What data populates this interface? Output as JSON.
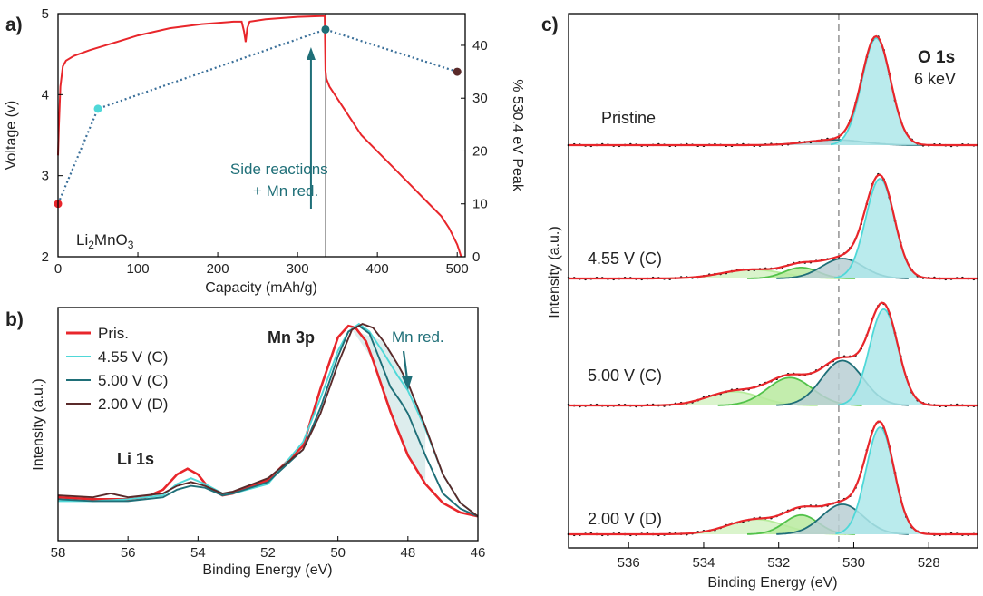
{
  "colors": {
    "red": "#e8262b",
    "cyan": "#4fd8d8",
    "teal": "#1f6f78",
    "brown": "#5a2a2a",
    "dotted": "#3a6f99",
    "green": "#52c24a",
    "lightgreen": "#b5ec9a",
    "cyanfill": "#aee8ea",
    "grayfill": "#b8cfd3",
    "dash": "#999999"
  },
  "chart_data": [
    {
      "panel": "a)",
      "type": "line",
      "xlabel": "Capacity (mAh/g)",
      "ylabel": "Voltage (v)",
      "y2label": "% 530.4 eV Peak",
      "xlim": [
        0,
        510
      ],
      "ylim": [
        2,
        5
      ],
      "y2lim": [
        0,
        46
      ],
      "xticks": [
        "0",
        "100",
        "200",
        "300",
        "400",
        "500"
      ],
      "yticks": [
        "2",
        "3",
        "4",
        "5"
      ],
      "y2ticks": [
        "0",
        "10",
        "20",
        "30",
        "40"
      ],
      "annotation": "Side reactions\n+ Mn red.",
      "sample_label": "Li2MnO3",
      "series": [
        {
          "role": "voltage",
          "x": [
            0,
            1,
            3,
            6,
            10,
            20,
            40,
            70,
            100,
            140,
            180,
            220,
            230,
            233,
            235,
            237,
            240,
            260,
            300,
            330,
            334,
            335,
            336,
            340,
            360,
            380,
            400,
            420,
            440,
            460,
            480,
            490,
            500,
            505
          ],
          "y": [
            3.25,
            3.6,
            4.1,
            4.35,
            4.42,
            4.48,
            4.55,
            4.64,
            4.73,
            4.82,
            4.87,
            4.9,
            4.9,
            4.78,
            4.65,
            4.82,
            4.9,
            4.93,
            4.96,
            4.97,
            4.97,
            4.3,
            4.2,
            4.1,
            3.8,
            3.5,
            3.3,
            3.1,
            2.9,
            2.7,
            2.5,
            2.35,
            2.15,
            2.0
          ]
        },
        {
          "role": "530.4 eV peak %",
          "x": [
            0,
            50,
            335,
            500
          ],
          "y": [
            10,
            28,
            43,
            35
          ],
          "point_colors": [
            "#e8262b",
            "#4fd8d8",
            "#1f6f78",
            "#5a2a2a"
          ]
        }
      ]
    },
    {
      "panel": "b)",
      "type": "line",
      "xlabel": "Binding Energy (eV)",
      "ylabel": "Intensity (a.u.)",
      "xlim": [
        58,
        46
      ],
      "xticks": [
        "58",
        "56",
        "54",
        "52",
        "50",
        "48",
        "46"
      ],
      "peak_labels": [
        "Mn 3p",
        "Li 1s"
      ],
      "annotation": "Mn red.",
      "legend": [
        "Pris.",
        "4.55 V (C)",
        "5.00 V (C)",
        "2.00 V (D)"
      ],
      "series": [
        {
          "name": "Pris.",
          "x": [
            58,
            57,
            56,
            55.5,
            55,
            54.6,
            54.3,
            54.0,
            53.7,
            53.3,
            53,
            52,
            51,
            50.5,
            50,
            49.7,
            49.5,
            49.2,
            49,
            48.5,
            48,
            47.5,
            47,
            46.5,
            46
          ],
          "y": [
            0.08,
            0.07,
            0.07,
            0.08,
            0.12,
            0.2,
            0.23,
            0.2,
            0.13,
            0.09,
            0.1,
            0.17,
            0.35,
            0.65,
            0.92,
            0.98,
            0.97,
            0.9,
            0.8,
            0.53,
            0.3,
            0.15,
            0.05,
            0.0,
            -0.02
          ]
        },
        {
          "name": "4.55 V (C)",
          "x": [
            58,
            57,
            56,
            55.5,
            55,
            54.6,
            54.2,
            53.8,
            53.3,
            53,
            52,
            51,
            50.5,
            50,
            49.7,
            49.4,
            49.1,
            48.7,
            48.3,
            48,
            47.5,
            47,
            46.5,
            46
          ],
          "y": [
            0.06,
            0.06,
            0.07,
            0.08,
            0.09,
            0.15,
            0.18,
            0.15,
            0.1,
            0.1,
            0.15,
            0.37,
            0.6,
            0.85,
            0.95,
            0.99,
            0.95,
            0.84,
            0.72,
            0.64,
            0.44,
            0.2,
            0.05,
            -0.02
          ]
        },
        {
          "name": "5.00 V (C)",
          "x": [
            58,
            57,
            56,
            55.5,
            55,
            54.6,
            54.2,
            53.8,
            53.3,
            53,
            52,
            51,
            50.5,
            50,
            49.7,
            49.4,
            49.1,
            48.8,
            48.5,
            48.2,
            48,
            47.5,
            47,
            46.5,
            46
          ],
          "y": [
            0.07,
            0.06,
            0.06,
            0.07,
            0.08,
            0.12,
            0.14,
            0.13,
            0.09,
            0.1,
            0.16,
            0.33,
            0.55,
            0.82,
            0.95,
            0.98,
            0.94,
            0.8,
            0.66,
            0.58,
            0.52,
            0.3,
            0.1,
            0.02,
            -0.02
          ]
        },
        {
          "name": "2.00 V (D)",
          "x": [
            58,
            57,
            56.5,
            56,
            55.5,
            55,
            54.6,
            54.2,
            53.8,
            53.3,
            53,
            52,
            51,
            50.5,
            50,
            49.6,
            49.3,
            49,
            48.7,
            48.3,
            48,
            47.5,
            47,
            46.5,
            46
          ],
          "y": [
            0.09,
            0.08,
            0.1,
            0.08,
            0.09,
            0.1,
            0.14,
            0.16,
            0.14,
            0.1,
            0.11,
            0.18,
            0.33,
            0.52,
            0.78,
            0.96,
            0.99,
            0.97,
            0.9,
            0.78,
            0.68,
            0.45,
            0.2,
            0.05,
            -0.02
          ]
        }
      ]
    },
    {
      "panel": "c)",
      "type": "line",
      "xlabel": "Binding Energy (eV)",
      "ylabel": "Intensity (a.u.)",
      "xlim": [
        537.6,
        526.7
      ],
      "xticks": [
        "536",
        "534",
        "532",
        "530",
        "528"
      ],
      "reference_line_x": 530.4,
      "title": "O 1s",
      "subtitle": "6 keV",
      "spectra": [
        {
          "label": "Pristine",
          "envelope_peak": 529.4,
          "components": [
            {
              "center": 529.4,
              "sigma": 0.38,
              "amp": 1.0,
              "color": "cyan"
            },
            {
              "center": 530.5,
              "sigma": 0.75,
              "amp": 0.05,
              "color": "teal"
            }
          ]
        },
        {
          "label": "4.55 V (C)",
          "envelope_peak": 529.3,
          "components": [
            {
              "center": 529.3,
              "sigma": 0.38,
              "amp": 1.0,
              "color": "cyan"
            },
            {
              "center": 530.3,
              "sigma": 0.55,
              "amp": 0.2,
              "color": "teal"
            },
            {
              "center": 531.4,
              "sigma": 0.45,
              "amp": 0.11,
              "color": "green"
            },
            {
              "center": 532.7,
              "sigma": 0.8,
              "amp": 0.09,
              "color": "lightgreen"
            }
          ]
        },
        {
          "label": "5.00 V (C)",
          "envelope_peak": 529.2,
          "components": [
            {
              "center": 529.2,
              "sigma": 0.38,
              "amp": 0.9,
              "color": "cyan"
            },
            {
              "center": 530.3,
              "sigma": 0.55,
              "amp": 0.42,
              "color": "teal"
            },
            {
              "center": 531.7,
              "sigma": 0.6,
              "amp": 0.26,
              "color": "green"
            },
            {
              "center": 533.2,
              "sigma": 0.7,
              "amp": 0.13,
              "color": "lightgreen"
            }
          ]
        },
        {
          "label": "2.00 V (D)",
          "envelope_peak": 529.3,
          "components": [
            {
              "center": 529.3,
              "sigma": 0.37,
              "amp": 1.0,
              "color": "cyan"
            },
            {
              "center": 530.3,
              "sigma": 0.55,
              "amp": 0.28,
              "color": "teal"
            },
            {
              "center": 531.4,
              "sigma": 0.45,
              "amp": 0.18,
              "color": "green"
            },
            {
              "center": 532.6,
              "sigma": 0.75,
              "amp": 0.14,
              "color": "lightgreen"
            }
          ]
        }
      ]
    }
  ]
}
